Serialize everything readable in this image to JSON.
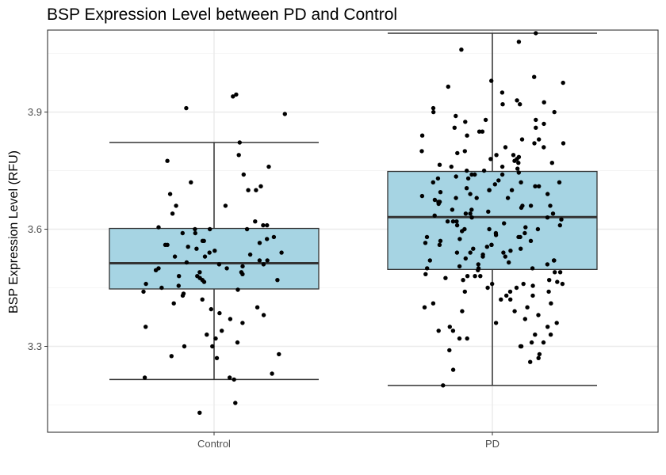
{
  "chart_data": {
    "type": "box",
    "title": "BSP Expression Level between PD and Control",
    "xlabel": "",
    "ylabel": "BSP Expression Level (RFU)",
    "ylim": [
      3.08,
      4.11
    ],
    "y_ticks": [
      3.3,
      3.6,
      3.9
    ],
    "y_tick_labels": [
      "3.3",
      "3.6",
      "3.9"
    ],
    "categories": [
      "Control",
      "PD"
    ],
    "grid": true,
    "legend": "none",
    "colors": {
      "box_fill": "#a6d4e3",
      "box_stroke": "#333333",
      "point": "#000000",
      "grid_major": "#ebebeb",
      "grid_minor": "#f3f3f3",
      "panel_border": "#333333"
    },
    "boxes": [
      {
        "category": "Control",
        "whisker_low": 3.215,
        "q1": 3.447,
        "median": 3.513,
        "q3": 3.602,
        "whisker_high": 3.822
      },
      {
        "category": "PD",
        "whisker_low": 3.2,
        "q1": 3.497,
        "median": 3.631,
        "q3": 3.748,
        "whisker_high": 4.102
      }
    ],
    "points": [
      {
        "category": "Control",
        "values": [
          3.945,
          3.91,
          3.94,
          3.895,
          3.822,
          3.79,
          3.775,
          3.76,
          3.74,
          3.71,
          3.7,
          3.72,
          3.7,
          3.69,
          3.66,
          3.66,
          3.64,
          3.62,
          3.61,
          3.61,
          3.605,
          3.6,
          3.6,
          3.6,
          3.59,
          3.59,
          3.58,
          3.575,
          3.57,
          3.57,
          3.565,
          3.56,
          3.56,
          3.555,
          3.55,
          3.545,
          3.54,
          3.54,
          3.535,
          3.53,
          3.53,
          3.52,
          3.52,
          3.515,
          3.51,
          3.51,
          3.505,
          3.5,
          3.5,
          3.495,
          3.49,
          3.49,
          3.485,
          3.48,
          3.48,
          3.475,
          3.47,
          3.47,
          3.465,
          3.46,
          3.455,
          3.45,
          3.445,
          3.44,
          3.435,
          3.43,
          3.42,
          3.41,
          3.4,
          3.395,
          3.385,
          3.38,
          3.37,
          3.36,
          3.35,
          3.34,
          3.33,
          3.32,
          3.31,
          3.3,
          3.3,
          3.28,
          3.275,
          3.27,
          3.23,
          3.22,
          3.22,
          3.215,
          3.155,
          3.13
        ]
      },
      {
        "category": "PD",
        "values": [
          4.102,
          4.08,
          4.06,
          3.99,
          3.975,
          3.98,
          3.965,
          3.95,
          3.93,
          3.925,
          3.92,
          3.92,
          3.91,
          3.9,
          3.9,
          3.89,
          3.88,
          3.88,
          3.875,
          3.87,
          3.86,
          3.86,
          3.85,
          3.85,
          3.84,
          3.84,
          3.83,
          3.83,
          3.82,
          3.82,
          3.81,
          3.81,
          3.8,
          3.8,
          3.795,
          3.79,
          3.79,
          3.785,
          3.78,
          3.78,
          3.775,
          3.77,
          3.77,
          3.765,
          3.76,
          3.76,
          3.755,
          3.75,
          3.75,
          3.745,
          3.74,
          3.74,
          3.735,
          3.73,
          3.73,
          3.725,
          3.72,
          3.72,
          3.715,
          3.71,
          3.71,
          3.705,
          3.7,
          3.7,
          3.695,
          3.69,
          3.69,
          3.685,
          3.68,
          3.68,
          3.675,
          3.67,
          3.67,
          3.665,
          3.66,
          3.66,
          3.655,
          3.65,
          3.65,
          3.645,
          3.64,
          3.64,
          3.635,
          3.63,
          3.63,
          3.625,
          3.62,
          3.62,
          3.615,
          3.61,
          3.61,
          3.605,
          3.6,
          3.6,
          3.595,
          3.59,
          3.59,
          3.585,
          3.58,
          3.58,
          3.575,
          3.57,
          3.57,
          3.565,
          3.56,
          3.56,
          3.555,
          3.55,
          3.55,
          3.545,
          3.54,
          3.54,
          3.535,
          3.53,
          3.53,
          3.525,
          3.52,
          3.52,
          3.515,
          3.51,
          3.51,
          3.505,
          3.5,
          3.5,
          3.495,
          3.49,
          3.49,
          3.485,
          3.48,
          3.48,
          3.475,
          3.47,
          3.47,
          3.465,
          3.46,
          3.46,
          3.455,
          3.45,
          3.45,
          3.44,
          3.44,
          3.43,
          3.43,
          3.42,
          3.42,
          3.41,
          3.41,
          3.4,
          3.4,
          3.39,
          3.39,
          3.38,
          3.37,
          3.36,
          3.36,
          3.35,
          3.35,
          3.34,
          3.34,
          3.33,
          3.33,
          3.32,
          3.32,
          3.31,
          3.31,
          3.3,
          3.3,
          3.29,
          3.28,
          3.27,
          3.26,
          3.24,
          3.2,
          3.72,
          3.68,
          3.64,
          3.6,
          3.56,
          3.52,
          3.48,
          3.44,
          3.66,
          3.62,
          3.58,
          3.54,
          3.5,
          3.46,
          3.7,
          3.74
        ]
      }
    ]
  }
}
